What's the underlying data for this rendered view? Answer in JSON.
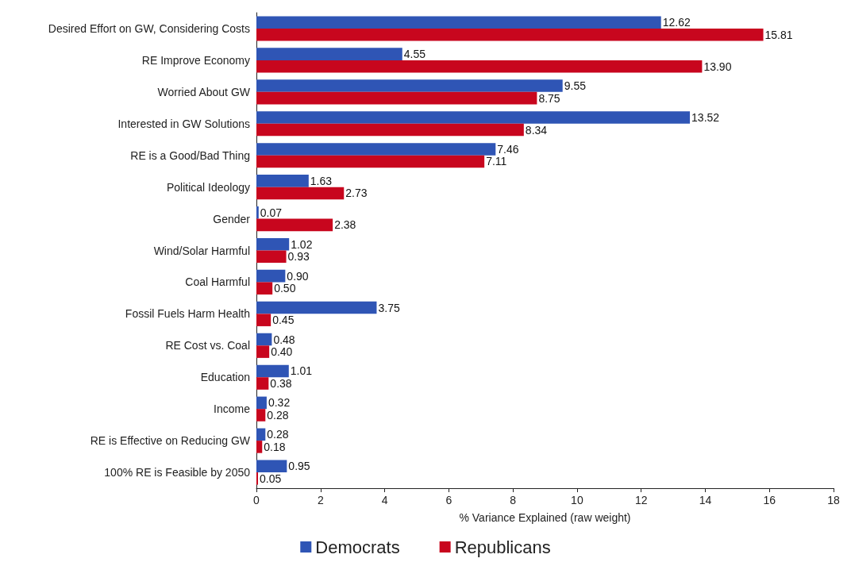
{
  "chart_data": {
    "type": "bar",
    "orientation": "horizontal",
    "xlabel": "% Variance Explained (raw weight)",
    "categories": [
      "Desired Effort on GW, Considering Costs",
      "RE Improve Economy",
      "Worried About GW",
      "Interested in GW Solutions",
      "RE is a Good/Bad Thing",
      "Political Ideology",
      "Gender",
      "Wind/Solar Harmful",
      "Coal Harmful",
      "Fossil Fuels Harm Health",
      "RE Cost vs. Coal",
      "Education",
      "Income",
      "RE is Effective on Reducing GW",
      "100% RE is Feasible by 2050"
    ],
    "series": [
      {
        "name": "Democrats",
        "color": "#2f55b5",
        "values": [
          12.62,
          4.55,
          9.55,
          13.52,
          7.46,
          1.63,
          0.07,
          1.02,
          0.9,
          3.75,
          0.48,
          1.01,
          0.32,
          0.28,
          0.95
        ],
        "value_labels": [
          "12.62",
          "4.55",
          "9.55",
          "13.52",
          "7.46",
          "1.63",
          "0.07",
          "1.02",
          "0.90",
          "3.75",
          "0.48",
          "1.01",
          "0.32",
          "0.28",
          "0.95"
        ]
      },
      {
        "name": "Republicans",
        "color": "#c8061e",
        "values": [
          15.81,
          13.9,
          8.75,
          8.34,
          7.11,
          2.73,
          2.38,
          0.93,
          0.5,
          0.45,
          0.4,
          0.38,
          0.28,
          0.18,
          0.05
        ],
        "value_labels": [
          "15.81",
          "13.90",
          "8.75",
          "8.34",
          "7.11",
          "2.73",
          "2.38",
          "0.93",
          "0.50",
          "0.45",
          "0.40",
          "0.38",
          "0.28",
          "0.18",
          "0.05"
        ]
      }
    ],
    "xlim": [
      0,
      18
    ],
    "xticks": [
      0,
      2,
      4,
      6,
      8,
      10,
      12,
      14,
      16,
      18
    ],
    "grid": false,
    "legend": "bottom"
  }
}
